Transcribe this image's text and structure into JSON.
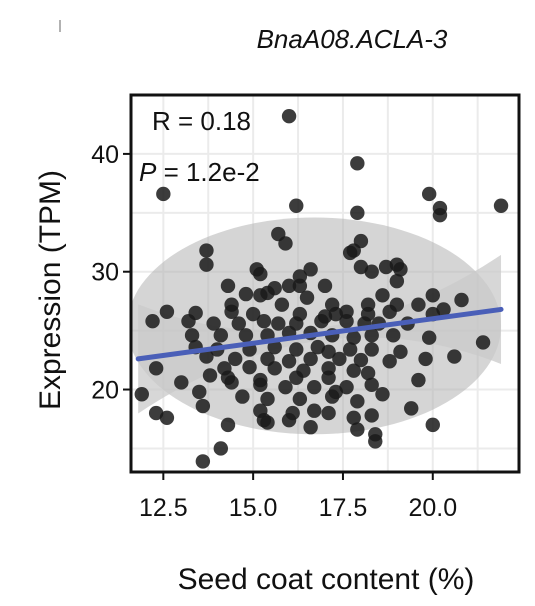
{
  "chart_data": {
    "type": "scatter",
    "title": "BnaA08.ACLA-3",
    "xlabel": "Seed coat content (%)",
    "ylabel": "Expression (TPM)",
    "xlim": [
      11.6,
      22.4
    ],
    "ylim": [
      13.0,
      45.0
    ],
    "xticks": [
      12.5,
      15.0,
      17.5,
      20.0
    ],
    "xtick_labels": [
      "12.5",
      "15.0",
      "17.5",
      "20.0"
    ],
    "yticks": [
      20,
      30,
      40
    ],
    "ytick_labels": [
      "20",
      "30",
      "40"
    ],
    "grid": true,
    "legend": "none",
    "annotations": {
      "r_text": "R = 0.18",
      "p_symbol": "P",
      "p_value": " = 1.2e-2"
    },
    "colors": {
      "points": "#1a1a1a",
      "fit_line": "#4a5fb8",
      "confidence_band": "#c9c9c9",
      "ellipse": "#b3b3b3",
      "grid": "#ebebeb"
    },
    "fit_line": {
      "x": [
        11.8,
        21.9
      ],
      "y": [
        22.6,
        26.8
      ]
    },
    "ellipse": {
      "center_x": 16.7,
      "center_y": 25.4,
      "half_width_x": 5.2,
      "half_height_y": 9.2
    },
    "points": [
      [
        16.0,
        43.2
      ],
      [
        17.9,
        39.2
      ],
      [
        12.5,
        36.6
      ],
      [
        16.2,
        35.6
      ],
      [
        17.9,
        35.0
      ],
      [
        19.9,
        36.6
      ],
      [
        20.2,
        35.4
      ],
      [
        20.2,
        34.8
      ],
      [
        21.9,
        35.6
      ],
      [
        15.7,
        33.2
      ],
      [
        15.9,
        32.4
      ],
      [
        13.7,
        31.8
      ],
      [
        18.0,
        32.6
      ],
      [
        17.8,
        31.8
      ],
      [
        17.7,
        31.6
      ],
      [
        13.7,
        30.6
      ],
      [
        16.6,
        30.2
      ],
      [
        18.0,
        30.4
      ],
      [
        18.3,
        30.0
      ],
      [
        18.7,
        30.4
      ],
      [
        19.0,
        30.6
      ],
      [
        19.1,
        30.2
      ],
      [
        15.1,
        30.2
      ],
      [
        15.2,
        29.8
      ],
      [
        16.3,
        29.6
      ],
      [
        14.3,
        28.8
      ],
      [
        15.6,
        28.6
      ],
      [
        16.0,
        28.8
      ],
      [
        16.3,
        28.8
      ],
      [
        17.0,
        28.8
      ],
      [
        18.6,
        28.0
      ],
      [
        19.0,
        29.2
      ],
      [
        20.0,
        28.0
      ],
      [
        14.8,
        28.1
      ],
      [
        15.2,
        28.0
      ],
      [
        15.4,
        28.2
      ],
      [
        16.5,
        27.8
      ],
      [
        14.4,
        27.2
      ],
      [
        15.8,
        27.2
      ],
      [
        17.2,
        27.2
      ],
      [
        18.2,
        27.2
      ],
      [
        19.0,
        27.2
      ],
      [
        19.6,
        27.2
      ],
      [
        20.8,
        27.6
      ],
      [
        12.6,
        26.6
      ],
      [
        13.4,
        26.5
      ],
      [
        14.4,
        26.6
      ],
      [
        15.0,
        26.4
      ],
      [
        16.3,
        26.4
      ],
      [
        17.0,
        26.2
      ],
      [
        17.3,
        26.4
      ],
      [
        17.6,
        26.6
      ],
      [
        18.2,
        26.4
      ],
      [
        18.8,
        26.6
      ],
      [
        20.0,
        26.4
      ],
      [
        20.3,
        26.8
      ],
      [
        12.2,
        25.8
      ],
      [
        13.2,
        25.8
      ],
      [
        13.9,
        25.6
      ],
      [
        14.6,
        25.6
      ],
      [
        15.3,
        25.8
      ],
      [
        15.7,
        25.6
      ],
      [
        16.2,
        25.6
      ],
      [
        16.9,
        25.8
      ],
      [
        17.6,
        25.8
      ],
      [
        18.1,
        25.6
      ],
      [
        18.5,
        25.6
      ],
      [
        19.3,
        25.6
      ],
      [
        13.3,
        24.6
      ],
      [
        14.1,
        24.6
      ],
      [
        14.8,
        24.6
      ],
      [
        15.4,
        24.6
      ],
      [
        16.0,
        24.8
      ],
      [
        16.6,
        24.8
      ],
      [
        17.2,
        24.6
      ],
      [
        17.8,
        24.4
      ],
      [
        18.3,
        24.6
      ],
      [
        18.9,
        24.6
      ],
      [
        19.9,
        24.4
      ],
      [
        13.4,
        23.6
      ],
      [
        14.0,
        23.4
      ],
      [
        14.9,
        23.4
      ],
      [
        15.6,
        23.6
      ],
      [
        16.2,
        23.4
      ],
      [
        16.8,
        23.6
      ],
      [
        17.1,
        23.2
      ],
      [
        17.7,
        23.4
      ],
      [
        18.3,
        23.4
      ],
      [
        19.8,
        22.6
      ],
      [
        20.6,
        22.8
      ],
      [
        13.7,
        22.8
      ],
      [
        14.5,
        22.6
      ],
      [
        15.4,
        22.6
      ],
      [
        16.0,
        22.4
      ],
      [
        16.6,
        22.6
      ],
      [
        17.4,
        22.6
      ],
      [
        18.0,
        22.5
      ],
      [
        18.8,
        22.4
      ],
      [
        19.1,
        23.2
      ],
      [
        21.4,
        24.0
      ],
      [
        12.3,
        21.8
      ],
      [
        14.2,
        21.8
      ],
      [
        14.9,
        21.9
      ],
      [
        15.6,
        21.8
      ],
      [
        16.4,
        21.6
      ],
      [
        17.1,
        21.8
      ],
      [
        17.8,
        21.6
      ],
      [
        18.2,
        21.4
      ],
      [
        13.8,
        21.2
      ],
      [
        14.3,
        21.0
      ],
      [
        15.2,
        20.8
      ],
      [
        16.2,
        21.0
      ],
      [
        17.1,
        21.0
      ],
      [
        17.6,
        20.2
      ],
      [
        18.3,
        20.4
      ],
      [
        19.6,
        20.8
      ],
      [
        13.0,
        20.6
      ],
      [
        14.4,
        20.6
      ],
      [
        15.2,
        20.4
      ],
      [
        15.9,
        20.2
      ],
      [
        16.7,
        20.2
      ],
      [
        17.3,
        19.8
      ],
      [
        18.6,
        19.6
      ],
      [
        11.9,
        19.6
      ],
      [
        13.5,
        19.8
      ],
      [
        14.7,
        19.4
      ],
      [
        15.4,
        19.2
      ],
      [
        16.3,
        19.2
      ],
      [
        17.2,
        19.4
      ],
      [
        17.9,
        19.0
      ],
      [
        13.6,
        18.6
      ],
      [
        15.2,
        18.2
      ],
      [
        16.1,
        18.0
      ],
      [
        16.7,
        18.2
      ],
      [
        17.1,
        18.0
      ],
      [
        19.4,
        18.4
      ],
      [
        12.3,
        18.0
      ],
      [
        12.6,
        17.6
      ],
      [
        15.3,
        17.4
      ],
      [
        16.0,
        17.4
      ],
      [
        17.8,
        17.6
      ],
      [
        18.3,
        17.8
      ],
      [
        20.0,
        17.0
      ],
      [
        14.3,
        17.0
      ],
      [
        15.4,
        17.2
      ],
      [
        16.6,
        16.8
      ],
      [
        17.9,
        16.6
      ],
      [
        18.4,
        16.2
      ],
      [
        18.4,
        15.6
      ],
      [
        14.1,
        15.0
      ],
      [
        13.6,
        13.9
      ]
    ]
  }
}
